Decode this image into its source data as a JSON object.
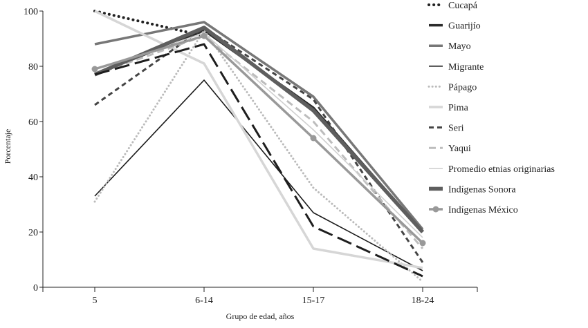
{
  "chart_data": {
    "type": "line",
    "title": "",
    "xlabel": "Grupo de edad, años",
    "ylabel": "Porcentaje",
    "categories": [
      "5",
      "6-14",
      "15-17",
      "18-24"
    ],
    "ylim": [
      0,
      100
    ],
    "yticks": [
      0,
      20,
      40,
      60,
      80,
      100
    ],
    "grid": false,
    "legend_position": "right",
    "series": [
      {
        "name": "Cucapá",
        "values": [
          100,
          91,
          null,
          null
        ],
        "color": "#222222",
        "style": "dotted-heavy"
      },
      {
        "name": "Guarijío",
        "values": [
          77,
          93,
          65,
          20
        ],
        "color": "#2a2a2a",
        "style": "solid-thick"
      },
      {
        "name": "Mayo",
        "values": [
          88,
          96,
          69,
          21
        ],
        "color": "#777777",
        "style": "solid-thick"
      },
      {
        "name": "Migrante",
        "values": [
          33,
          75,
          27,
          6
        ],
        "color": "#1a1a1a",
        "style": "solid-thin"
      },
      {
        "name": "Pápago",
        "values": [
          31,
          93,
          36,
          2
        ],
        "color": "#bbbbbb",
        "style": "dotted"
      },
      {
        "name": "Pima",
        "values": [
          100,
          81,
          14,
          7
        ],
        "color": "#d6d6d6",
        "style": "solid-thick"
      },
      {
        "name": "Seri",
        "values": [
          66,
          94,
          68,
          9
        ],
        "color": "#444444",
        "style": "dashed"
      },
      {
        "name": "Yaqui",
        "values": [
          77,
          91,
          60,
          14
        ],
        "color": "#bdbdbd",
        "style": "dashed-light"
      },
      {
        "name": "Promedio etnias originarias",
        "values": [
          79,
          92,
          57,
          18
        ],
        "color": "#d0d0d0",
        "style": "solid-thin"
      },
      {
        "name": "Indígenas Sonora",
        "values": [
          77,
          94,
          64,
          20
        ],
        "color": "#5e5e5e",
        "style": "solid-heavy"
      },
      {
        "name": "Indígenas México",
        "values": [
          79,
          91,
          54,
          16
        ],
        "color": "#999999",
        "style": "solid-marker"
      },
      {
        "name": "",
        "values": [
          77,
          88,
          22,
          4
        ],
        "color": "#1e1e1e",
        "style": "long-dash",
        "legend": false
      }
    ]
  }
}
